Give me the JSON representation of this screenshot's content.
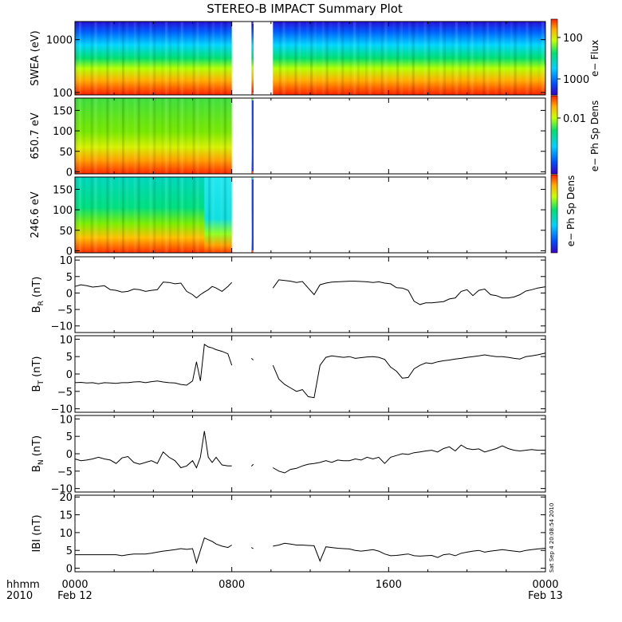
{
  "title": "STEREO-B IMPACT Summary Plot",
  "footer": {
    "left_top": "hhmm",
    "left_bottom": "2010",
    "stamp": "Sat Sep  4 20:08:54 2010"
  },
  "chart_data": [
    {
      "type": "heatmap",
      "ylabel": "SWEA (eV)",
      "ylim": [
        90,
        2200
      ],
      "yscale": "log",
      "yticks": [
        "100",
        "1000"
      ],
      "colorbar": {
        "label": "e− Flux",
        "ticks": [
          "100",
          "1000"
        ]
      },
      "data_gaps_hours": [
        [
          8.0,
          9.0
        ],
        [
          9.1,
          10.1
        ]
      ],
      "colors_low_to_high": [
        "#3b00c9",
        "#0050ff",
        "#00d0ff",
        "#00e070",
        "#c8ff00",
        "#ffb000",
        "#ff2000"
      ]
    },
    {
      "type": "heatmap",
      "ylabel": "650.7 eV",
      "ylim": [
        -5,
        180
      ],
      "yticks": [
        "0",
        "50",
        "100",
        "150"
      ],
      "colorbar": {
        "label": "e− Ph Sp Dens",
        "ticks": [
          "0.01"
        ]
      },
      "data_gaps_hours": [
        [
          8.0,
          9.0
        ],
        [
          9.1,
          24.0
        ]
      ]
    },
    {
      "type": "heatmap",
      "ylabel": "246.6 eV",
      "ylim": [
        -5,
        180
      ],
      "yticks": [
        "0",
        "50",
        "100",
        "150"
      ],
      "colorbar": {
        "label": "e− Ph Sp Dens",
        "ticks": []
      },
      "data_gaps_hours": [
        [
          8.0,
          9.0
        ],
        [
          9.1,
          24.0
        ]
      ]
    },
    {
      "type": "line",
      "ylabel": "B",
      "ylabel_sub": "R",
      "ylabel_unit": "(nT)",
      "ylim": [
        -12,
        11
      ],
      "yticks": [
        "−10",
        "−5",
        "0",
        "5",
        "10"
      ],
      "x_hours": [
        0,
        0.3,
        0.6,
        0.9,
        1.2,
        1.5,
        1.8,
        2.1,
        2.4,
        2.7,
        3,
        3.3,
        3.6,
        3.9,
        4.2,
        4.5,
        4.8,
        5.1,
        5.4,
        5.7,
        6,
        6.2,
        6.4,
        6.6,
        6.8,
        7,
        7.2,
        7.5,
        7.8,
        8.0,
        9.0,
        9.1,
        10.1,
        10.4,
        10.7,
        11,
        11.3,
        11.6,
        11.9,
        12.2,
        12.5,
        12.8,
        13.1,
        13.4,
        13.7,
        14,
        14.3,
        14.6,
        14.9,
        15.2,
        15.5,
        15.8,
        16.1,
        16.4,
        16.7,
        17,
        17.3,
        17.6,
        17.9,
        18.2,
        18.5,
        18.8,
        19.1,
        19.4,
        19.7,
        20,
        20.3,
        20.6,
        20.9,
        21.2,
        21.5,
        21.8,
        22.1,
        22.4,
        22.7,
        23,
        23.3,
        23.6,
        24
      ],
      "y": [
        2,
        2.5,
        2.2,
        1.8,
        2,
        2.2,
        1,
        0.8,
        0.3,
        0.5,
        1.2,
        1,
        0.5,
        0.8,
        1,
        3.3,
        3.2,
        2.8,
        3,
        0.5,
        -0.5,
        -1.5,
        -0.5,
        0.3,
        1,
        2,
        1.5,
        0.5,
        2,
        3.2,
        null,
        1.2,
        1.5,
        4,
        3.8,
        3.6,
        3.2,
        3.5,
        1.5,
        -0.5,
        2.5,
        3,
        3.3,
        3.4,
        3.5,
        3.6,
        3.6,
        3.5,
        3.4,
        3.2,
        3.4,
        3.0,
        2.8,
        1.6,
        1.5,
        0.8,
        -2.5,
        -3.5,
        -3,
        -3,
        -2.8,
        -2.6,
        -1.8,
        -1.5,
        0.5,
        1,
        -0.8,
        0.8,
        1.2,
        -0.5,
        -0.8,
        -1.5,
        -1.5,
        -1.2,
        -0.5,
        0.6,
        1,
        1.5,
        1.9
      ],
      "grid": false
    },
    {
      "type": "line",
      "ylabel": "B",
      "ylabel_sub": "T",
      "ylabel_unit": "(nT)",
      "ylim": [
        -11,
        11
      ],
      "yticks": [
        "−10",
        "−5",
        "0",
        "5",
        "10"
      ],
      "x_hours": [
        0,
        0.3,
        0.6,
        0.9,
        1.2,
        1.5,
        1.8,
        2.1,
        2.4,
        2.7,
        3,
        3.3,
        3.6,
        3.9,
        4.2,
        4.5,
        4.8,
        5.1,
        5.4,
        5.7,
        6,
        6.2,
        6.4,
        6.6,
        6.8,
        7,
        7.2,
        7.5,
        7.8,
        8.0,
        9.0,
        9.1,
        10.1,
        10.4,
        10.7,
        11,
        11.3,
        11.6,
        11.9,
        12.2,
        12.5,
        12.8,
        13.1,
        13.4,
        13.7,
        14,
        14.3,
        14.6,
        14.9,
        15.2,
        15.5,
        15.8,
        16.1,
        16.4,
        16.7,
        17,
        17.3,
        17.6,
        17.9,
        18.2,
        18.5,
        18.8,
        19.1,
        19.4,
        19.7,
        20,
        20.3,
        20.6,
        20.9,
        21.2,
        21.5,
        21.8,
        22.1,
        22.4,
        22.7,
        23,
        23.3,
        23.6,
        24
      ],
      "y": [
        -2.5,
        -2.4,
        -2.6,
        -2.5,
        -2.8,
        -2.5,
        -2.6,
        -2.7,
        -2.5,
        -2.5,
        -2.3,
        -2.2,
        -2.5,
        -2.2,
        -2,
        -2.3,
        -2.5,
        -2.6,
        -3,
        -3.2,
        -2,
        3.5,
        -2,
        8.5,
        7.8,
        7.5,
        7,
        6.5,
        5.8,
        2.5,
        4.5,
        4,
        2.5,
        -1.5,
        -3,
        -4,
        -5,
        -4.5,
        -6.5,
        -6.8,
        2.5,
        4.8,
        5.2,
        5,
        4.8,
        5,
        4.5,
        4.7,
        4.9,
        5,
        4.8,
        4.2,
        2,
        0.8,
        -1.2,
        -1,
        1.5,
        2.5,
        3.2,
        3,
        3.5,
        3.8,
        4,
        4.3,
        4.5,
        4.8,
        5,
        5.2,
        5.5,
        5.2,
        5,
        5,
        4.8,
        4.5,
        4.3,
        5,
        5.2,
        5.5,
        6
      ],
      "grid": false
    },
    {
      "type": "line",
      "ylabel": "B",
      "ylabel_sub": "N",
      "ylabel_unit": "(nT)",
      "ylim": [
        -11,
        11
      ],
      "yticks": [
        "−10",
        "−5",
        "0",
        "5",
        "10"
      ],
      "x_hours": [
        0,
        0.3,
        0.6,
        0.9,
        1.2,
        1.5,
        1.8,
        2.1,
        2.4,
        2.7,
        3,
        3.3,
        3.6,
        3.9,
        4.2,
        4.5,
        4.8,
        5.1,
        5.4,
        5.7,
        6,
        6.2,
        6.4,
        6.6,
        6.8,
        7,
        7.2,
        7.5,
        7.8,
        8.0,
        9.0,
        9.1,
        10.1,
        10.4,
        10.7,
        11,
        11.3,
        11.6,
        11.9,
        12.2,
        12.5,
        12.8,
        13.1,
        13.4,
        13.7,
        14,
        14.3,
        14.6,
        14.9,
        15.2,
        15.5,
        15.8,
        16.1,
        16.4,
        16.7,
        17,
        17.3,
        17.6,
        17.9,
        18.2,
        18.5,
        18.8,
        19.1,
        19.4,
        19.7,
        20,
        20.3,
        20.6,
        20.9,
        21.2,
        21.5,
        21.8,
        22.1,
        22.4,
        22.7,
        23,
        23.3,
        23.6,
        24
      ],
      "y": [
        -1.5,
        -2,
        -1.8,
        -1.5,
        -1,
        -1.5,
        -1.8,
        -2.8,
        -1.2,
        -0.8,
        -2.5,
        -3,
        -2.5,
        -2,
        -2.8,
        0.5,
        -1,
        -2,
        -4,
        -3.5,
        -2,
        -4,
        -1,
        6.5,
        -1,
        -2.5,
        -1,
        -3.2,
        -3.5,
        -3.5,
        -3.6,
        -3,
        -4,
        -5,
        -5.5,
        -4.5,
        -4.2,
        -3.5,
        -3,
        -2.8,
        -2.5,
        -2,
        -2.5,
        -1.8,
        -2,
        -2,
        -1.5,
        -1.8,
        -1,
        -1.5,
        -1,
        -2.8,
        -1,
        -0.5,
        0,
        -0.2,
        0.3,
        0.5,
        0.8,
        1,
        0.5,
        1.5,
        2,
        0.8,
        2.5,
        1.5,
        1.2,
        1.4,
        0.5,
        1,
        1.5,
        2.3,
        1.5,
        1,
        0.8,
        1,
        1.2,
        1,
        1
      ],
      "grid": false
    },
    {
      "type": "line",
      "ylabel": "IBI",
      "ylabel_unit": "(nT)",
      "ylim": [
        -1,
        20.5
      ],
      "yticks": [
        "0",
        "5",
        "10",
        "15",
        "20"
      ],
      "x_hours": [
        0,
        0.3,
        0.6,
        0.9,
        1.2,
        1.5,
        1.8,
        2.1,
        2.4,
        2.7,
        3,
        3.3,
        3.6,
        3.9,
        4.2,
        4.5,
        4.8,
        5.1,
        5.4,
        5.7,
        6,
        6.2,
        6.4,
        6.6,
        6.8,
        7,
        7.2,
        7.5,
        7.8,
        8.0,
        9.0,
        9.1,
        10.1,
        10.4,
        10.7,
        11,
        11.3,
        11.6,
        11.9,
        12.2,
        12.5,
        12.8,
        13.1,
        13.4,
        13.7,
        14,
        14.3,
        14.6,
        14.9,
        15.2,
        15.5,
        15.8,
        16.1,
        16.4,
        16.7,
        17,
        17.3,
        17.6,
        17.9,
        18.2,
        18.5,
        18.8,
        19.1,
        19.4,
        19.7,
        20,
        20.3,
        20.6,
        20.9,
        21.2,
        21.5,
        21.8,
        22.1,
        22.4,
        22.7,
        23,
        23.3,
        23.6,
        24
      ],
      "y": [
        3.8,
        3.8,
        3.8,
        3.8,
        3.8,
        3.8,
        3.8,
        3.8,
        3.5,
        3.8,
        4,
        4,
        4,
        4.2,
        4.5,
        4.8,
        5,
        5.2,
        5.5,
        5.3,
        5.5,
        1.5,
        5,
        8.5,
        8,
        7.5,
        6.8,
        6.2,
        5.8,
        6.5,
        5.8,
        5.5,
        6.2,
        6.5,
        7,
        6.8,
        6.5,
        6.5,
        6.4,
        6.3,
        2,
        6,
        5.8,
        5.6,
        5.5,
        5.4,
        5,
        4.8,
        5,
        5.2,
        4.8,
        4,
        3.5,
        3.6,
        3.8,
        4,
        3.5,
        3.4,
        3.5,
        3.6,
        3,
        3.8,
        4,
        3.5,
        4.2,
        4.5,
        4.8,
        5,
        4.5,
        4.8,
        5,
        5.2,
        5,
        4.8,
        4.6,
        5,
        5.2,
        5.4,
        5.6
      ],
      "grid": false
    }
  ],
  "x_axis": {
    "ticks": [
      {
        "hour": 0,
        "label": "0000",
        "sub": "Feb 12"
      },
      {
        "hour": 8,
        "label": "0800",
        "sub": ""
      },
      {
        "hour": 16,
        "label": "1600",
        "sub": ""
      },
      {
        "hour": 24,
        "label": "0000",
        "sub": "Feb 13"
      }
    ],
    "range_hours": [
      0,
      24
    ]
  }
}
